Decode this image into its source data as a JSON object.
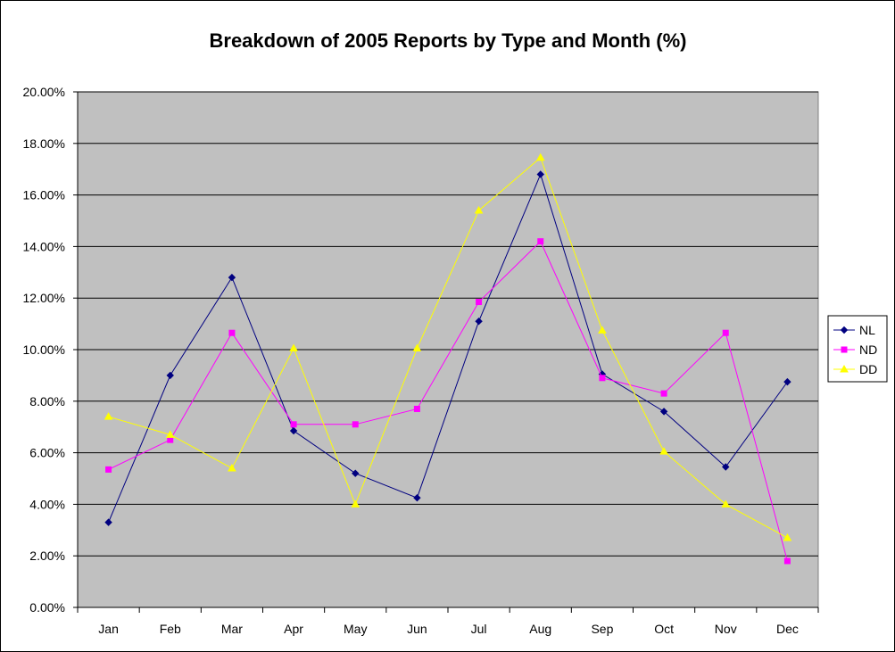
{
  "chart_data": {
    "type": "line",
    "title": "Breakdown of 2005 Reports by Type and Month (%)",
    "xlabel": "",
    "ylabel": "",
    "categories": [
      "Jan",
      "Feb",
      "Mar",
      "Apr",
      "May",
      "Jun",
      "Jul",
      "Aug",
      "Sep",
      "Oct",
      "Nov",
      "Dec"
    ],
    "ylim": [
      0,
      20
    ],
    "yticks": [
      "0.00%",
      "2.00%",
      "4.00%",
      "6.00%",
      "8.00%",
      "10.00%",
      "12.00%",
      "14.00%",
      "16.00%",
      "18.00%",
      "20.00%"
    ],
    "grid": true,
    "legend_position": "right",
    "plot_background": "#c0c0c0",
    "series": [
      {
        "name": "NL",
        "color": "#000080",
        "marker": "diamond",
        "values": [
          3.3,
          9.0,
          12.8,
          6.85,
          5.2,
          4.25,
          11.1,
          16.8,
          9.05,
          7.6,
          5.45,
          8.75
        ]
      },
      {
        "name": "ND",
        "color": "#ff00ff",
        "marker": "square",
        "values": [
          5.35,
          6.5,
          10.65,
          7.1,
          7.1,
          7.7,
          11.85,
          14.2,
          8.9,
          8.3,
          10.65,
          1.8
        ]
      },
      {
        "name": "DD",
        "color": "#ffff00",
        "marker": "triangle",
        "values": [
          7.4,
          6.7,
          5.4,
          10.05,
          4.0,
          10.05,
          15.4,
          17.45,
          10.75,
          6.05,
          4.0,
          2.7
        ]
      }
    ]
  }
}
